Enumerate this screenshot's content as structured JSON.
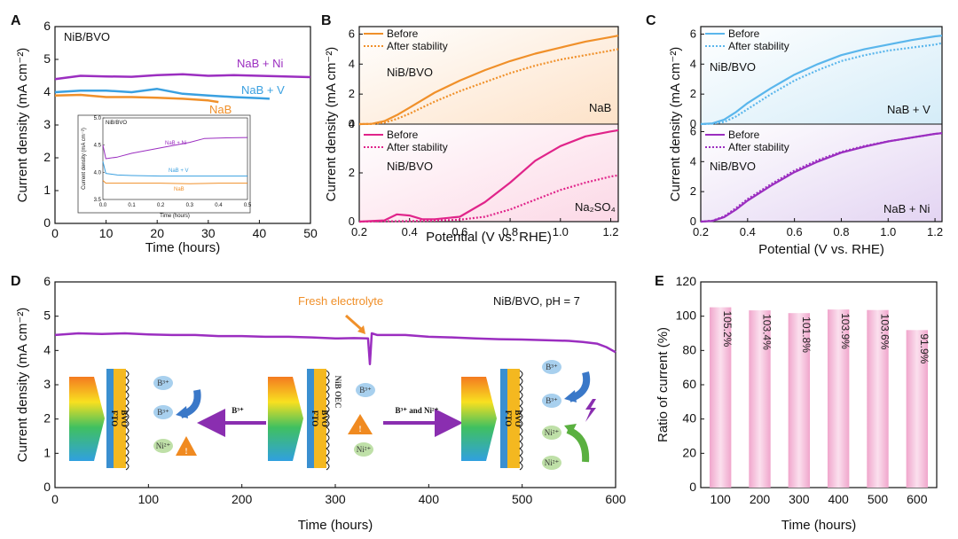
{
  "panels": {
    "A": {
      "letter": "A",
      "sample": "NiB/BVO",
      "xlabel": "Time (hours)",
      "ylabel": "Current density (mA cm⁻²)",
      "label_nab_ni": "NaB + Ni",
      "label_nab_v": "NaB + V",
      "label_nab": "NaB",
      "inset": {
        "sample": "NiB/BVO",
        "ylabel": "Current density (mA cm⁻²)",
        "xlabel": "Time (hours)",
        "label_nab_ni": "NaB + Ni",
        "label_nab_v": "NaB + V",
        "label_nab": "NaB"
      }
    },
    "B": {
      "letter": "B",
      "ylabel": "Current density (mA cm⁻²)",
      "xlabel": "Potential (V vs. RHE)",
      "top": {
        "sample": "NiB/BVO",
        "electrolyte": "NaB",
        "legend_before": "Before",
        "legend_after": "After stability"
      },
      "bottom": {
        "sample": "NiB/BVO",
        "electrolyte": "Na₂SO₄",
        "legend_before": "Before",
        "legend_after": "After stability"
      }
    },
    "C": {
      "letter": "C",
      "ylabel": "Current density (mA cm⁻²)",
      "xlabel": "Potential (V vs. RHE)",
      "top": {
        "sample": "NiB/BVO",
        "electrolyte": "NaB + V",
        "legend_before": "Before",
        "legend_after": "After stability"
      },
      "bottom": {
        "sample": "NiB/BVO",
        "electrolyte": "NaB + Ni",
        "legend_before": "Before",
        "legend_after": "After stability"
      }
    },
    "D": {
      "letter": "D",
      "ylabel": "Current density (mA cm⁻²)",
      "xlabel": "Time (hours)",
      "condition": "NiB/BVO, pH = 7",
      "annotation": "Fresh electrolyte",
      "diagram": {
        "arrow_left_label": "B³⁺",
        "arrow_right_label": "B³⁺ and Ni²⁺",
        "fto": "FTO",
        "bvo": "BVO",
        "oec": "NiB OEC",
        "ion_b": "B³⁺",
        "ion_ni": "Ni²⁺"
      }
    },
    "E": {
      "letter": "E",
      "ylabel": "Ratio of current (%)",
      "xlabel": "Time (hours)"
    }
  },
  "colors": {
    "orange": "#f0902a",
    "blue": "#3aa0e0",
    "purple": "#9b2ec0",
    "magenta": "#e0248a",
    "light_blue": "#5ab6ec",
    "bar": "#f2b8d8"
  },
  "chart_data": [
    {
      "id": "A",
      "type": "line",
      "xlim": [
        0,
        50
      ],
      "ylim": [
        0,
        6
      ],
      "xticks": [
        0,
        10,
        20,
        30,
        40,
        50
      ],
      "yticks": [
        0,
        1,
        2,
        3,
        4,
        5,
        6
      ],
      "series": [
        {
          "name": "NaB + Ni",
          "x": [
            0,
            5,
            10,
            15,
            20,
            25,
            30,
            35,
            40,
            45,
            50
          ],
          "y": [
            4.4,
            4.5,
            4.48,
            4.47,
            4.52,
            4.55,
            4.5,
            4.52,
            4.5,
            4.48,
            4.46
          ]
        },
        {
          "name": "NaB + V",
          "x": [
            0,
            5,
            10,
            15,
            20,
            25,
            30,
            35,
            40,
            42
          ],
          "y": [
            4.0,
            4.05,
            4.05,
            4.0,
            4.1,
            3.95,
            3.9,
            3.85,
            3.82,
            3.8
          ]
        },
        {
          "name": "NaB",
          "x": [
            0,
            5,
            10,
            15,
            20,
            25,
            30,
            32
          ],
          "y": [
            3.9,
            3.92,
            3.85,
            3.85,
            3.83,
            3.8,
            3.75,
            3.7
          ]
        }
      ],
      "inset": {
        "xlim": [
          0,
          0.5
        ],
        "ylim": [
          3.5,
          5.0
        ],
        "xticks": [
          0.0,
          0.1,
          0.2,
          0.3,
          0.4,
          0.5
        ],
        "yticks": [
          3.5,
          4.0,
          4.5,
          5.0
        ],
        "series": [
          {
            "name": "NaB + Ni",
            "x": [
              0,
              0.01,
              0.05,
              0.1,
              0.2,
              0.3,
              0.35,
              0.4,
              0.5
            ],
            "y": [
              4.5,
              4.25,
              4.28,
              4.35,
              4.45,
              4.55,
              4.62,
              4.63,
              4.64
            ]
          },
          {
            "name": "NaB + V",
            "x": [
              0,
              0.01,
              0.05,
              0.1,
              0.2,
              0.3,
              0.4,
              0.5
            ],
            "y": [
              4.2,
              3.98,
              3.95,
              3.94,
              3.93,
              3.93,
              3.93,
              3.93
            ]
          },
          {
            "name": "NaB",
            "x": [
              0,
              0.01,
              0.05,
              0.1,
              0.2,
              0.3,
              0.4,
              0.5
            ],
            "y": [
              3.85,
              3.8,
              3.8,
              3.8,
              3.8,
              3.79,
              3.8,
              3.8
            ]
          }
        ]
      }
    },
    {
      "id": "B-top",
      "type": "line",
      "xlim": [
        0.2,
        1.23
      ],
      "ylim": [
        0,
        6.5
      ],
      "yticks": [
        0,
        2,
        4,
        6
      ],
      "series": [
        {
          "name": "Before",
          "x": [
            0.2,
            0.25,
            0.3,
            0.35,
            0.4,
            0.5,
            0.6,
            0.7,
            0.8,
            0.9,
            1.0,
            1.1,
            1.2,
            1.23
          ],
          "y": [
            0,
            0.02,
            0.2,
            0.6,
            1.1,
            2.1,
            2.9,
            3.6,
            4.2,
            4.7,
            5.1,
            5.5,
            5.8,
            5.9
          ]
        },
        {
          "name": "After stability",
          "x": [
            0.2,
            0.25,
            0.3,
            0.35,
            0.4,
            0.5,
            0.6,
            0.7,
            0.8,
            0.9,
            1.0,
            1.1,
            1.2,
            1.23
          ],
          "y": [
            0,
            0.01,
            0.1,
            0.35,
            0.7,
            1.5,
            2.2,
            2.8,
            3.4,
            3.9,
            4.3,
            4.6,
            4.9,
            5.0
          ]
        }
      ]
    },
    {
      "id": "B-bottom",
      "type": "line",
      "xlim": [
        0.2,
        1.23
      ],
      "ylim": [
        0,
        4.0
      ],
      "yticks": [
        0,
        2,
        4
      ],
      "series": [
        {
          "name": "Before",
          "x": [
            0.2,
            0.3,
            0.35,
            0.4,
            0.45,
            0.5,
            0.6,
            0.7,
            0.8,
            0.9,
            1.0,
            1.1,
            1.2,
            1.23
          ],
          "y": [
            0,
            0.05,
            0.3,
            0.25,
            0.1,
            0.1,
            0.2,
            0.8,
            1.6,
            2.5,
            3.1,
            3.5,
            3.7,
            3.75
          ]
        },
        {
          "name": "After stability",
          "x": [
            0.2,
            0.3,
            0.4,
            0.5,
            0.6,
            0.7,
            0.8,
            0.9,
            1.0,
            1.1,
            1.2,
            1.23
          ],
          "y": [
            0,
            0.01,
            0.02,
            0.04,
            0.08,
            0.2,
            0.5,
            0.9,
            1.3,
            1.6,
            1.85,
            1.9
          ]
        }
      ]
    },
    {
      "id": "C-top",
      "type": "line",
      "xlim": [
        0.2,
        1.23
      ],
      "ylim": [
        0,
        6.5
      ],
      "yticks": [
        0,
        2,
        4,
        6
      ],
      "series": [
        {
          "name": "Before",
          "x": [
            0.2,
            0.25,
            0.3,
            0.35,
            0.4,
            0.5,
            0.6,
            0.7,
            0.8,
            0.9,
            1.0,
            1.1,
            1.2,
            1.23
          ],
          "y": [
            0,
            0.05,
            0.3,
            0.8,
            1.4,
            2.4,
            3.3,
            4.0,
            4.6,
            5.0,
            5.3,
            5.6,
            5.85,
            5.9
          ]
        },
        {
          "name": "After stability",
          "x": [
            0.2,
            0.25,
            0.3,
            0.35,
            0.4,
            0.5,
            0.6,
            0.7,
            0.8,
            0.9,
            1.0,
            1.1,
            1.2,
            1.23
          ],
          "y": [
            0,
            0.03,
            0.15,
            0.5,
            1.0,
            2.0,
            2.9,
            3.6,
            4.2,
            4.6,
            4.9,
            5.1,
            5.3,
            5.4
          ]
        }
      ]
    },
    {
      "id": "C-bottom",
      "type": "line",
      "xlim": [
        0.2,
        1.23
      ],
      "ylim": [
        0,
        6.5
      ],
      "yticks": [
        0,
        2,
        4,
        6
      ],
      "series": [
        {
          "name": "Before",
          "x": [
            0.2,
            0.25,
            0.3,
            0.35,
            0.4,
            0.5,
            0.6,
            0.7,
            0.8,
            0.9,
            1.0,
            1.1,
            1.2,
            1.23
          ],
          "y": [
            0,
            0.05,
            0.3,
            0.8,
            1.4,
            2.4,
            3.3,
            4.0,
            4.6,
            5.0,
            5.35,
            5.6,
            5.85,
            5.9
          ]
        },
        {
          "name": "After stability",
          "x": [
            0.2,
            0.25,
            0.3,
            0.35,
            0.4,
            0.5,
            0.6,
            0.7,
            0.8,
            0.9,
            1.0,
            1.1,
            1.2,
            1.23
          ],
          "y": [
            0,
            0.06,
            0.35,
            0.9,
            1.5,
            2.5,
            3.4,
            4.1,
            4.65,
            5.05,
            5.35,
            5.6,
            5.85,
            5.9
          ]
        }
      ]
    },
    {
      "id": "D",
      "type": "line",
      "xlim": [
        0,
        600
      ],
      "ylim": [
        0,
        6
      ],
      "xticks": [
        0,
        100,
        200,
        300,
        400,
        500,
        600
      ],
      "yticks": [
        0,
        1,
        2,
        3,
        4,
        5,
        6
      ],
      "series": [
        {
          "name": "NiB/BVO",
          "x": [
            0,
            25,
            50,
            75,
            100,
            125,
            150,
            175,
            200,
            225,
            250,
            275,
            300,
            320,
            335,
            337,
            339,
            345,
            375,
            400,
            425,
            450,
            475,
            500,
            525,
            550,
            565,
            580,
            590,
            600
          ],
          "y": [
            4.45,
            4.5,
            4.48,
            4.5,
            4.47,
            4.45,
            4.45,
            4.42,
            4.42,
            4.4,
            4.4,
            4.38,
            4.35,
            4.36,
            4.35,
            3.6,
            4.5,
            4.45,
            4.45,
            4.4,
            4.38,
            4.35,
            4.33,
            4.32,
            4.3,
            4.28,
            4.25,
            4.2,
            4.1,
            3.95
          ]
        }
      ]
    },
    {
      "id": "E",
      "type": "bar",
      "ylim": [
        0,
        120
      ],
      "yticks": [
        0,
        20,
        40,
        60,
        80,
        100,
        120
      ],
      "categories": [
        "100",
        "200",
        "300",
        "400",
        "500",
        "600"
      ],
      "values": [
        105.2,
        103.4,
        101.8,
        103.9,
        103.6,
        91.9
      ],
      "value_labels": [
        "105.2%",
        "103.4%",
        "101.8%",
        "103.9%",
        "103.6%",
        "91.9%"
      ]
    }
  ]
}
